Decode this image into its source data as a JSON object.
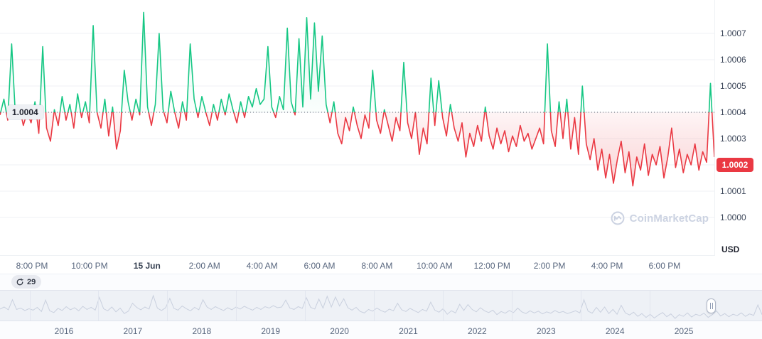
{
  "chart": {
    "open_price_label": "1.0004",
    "current_price_label": "1.0002",
    "unit_label": "USD",
    "watermark_text": "CoinMarketCap"
  },
  "history_badge": {
    "count": "29"
  },
  "navigator": {
    "years": [
      "2016",
      "2017",
      "2018",
      "2019",
      "2020",
      "2021",
      "2022",
      "2023",
      "2024",
      "2025"
    ]
  },
  "colors": {
    "up": "#16c784",
    "down": "#ea3943",
    "grid": "#eff2f5",
    "axis_text": "#58667e",
    "y_axis_text": "#3c4659",
    "price_badge_bg": "#ea3943",
    "price_badge_text": "#ffffff",
    "dotted_line": "#57606f",
    "watermark": "#ccd3e2",
    "navigator_line": "#b9c2d4"
  },
  "chart_data": {
    "type": "line",
    "unit": "USD",
    "threshold": 1.0004,
    "open_price": 1.0004,
    "current_price": 1.0002,
    "ylim": [
      1.0,
      1.0008
    ],
    "y_ticks": [
      "1.0000",
      "1.0001",
      "1.0002",
      "1.0003",
      "1.0004",
      "1.0005",
      "1.0006",
      "1.0007"
    ],
    "x_ticks": [
      "8:00 PM",
      "10:00 PM",
      "15 Jun",
      "2:00 AM",
      "4:00 AM",
      "6:00 AM",
      "8:00 AM",
      "10:00 AM",
      "12:00 PM",
      "2:00 PM",
      "4:00 PM",
      "6:00 PM"
    ],
    "grid": true,
    "legend": false,
    "values": [
      1.00039,
      1.00045,
      1.00037,
      1.00066,
      1.00038,
      1.00042,
      1.00035,
      1.0004,
      1.00036,
      1.00044,
      1.00032,
      1.00065,
      1.00034,
      1.00029,
      1.00041,
      1.00035,
      1.00046,
      1.00037,
      1.00043,
      1.00034,
      1.00047,
      1.00038,
      1.00044,
      1.00036,
      1.00073,
      1.0004,
      1.00034,
      1.00045,
      1.00031,
      1.00042,
      1.00026,
      1.00033,
      1.00056,
      1.00044,
      1.00037,
      1.00045,
      1.00039,
      1.00078,
      1.00042,
      1.00035,
      1.00043,
      1.0007,
      1.00041,
      1.00036,
      1.00048,
      1.0004,
      1.00034,
      1.00044,
      1.00037,
      1.00066,
      1.00045,
      1.00038,
      1.00046,
      1.0004,
      1.00035,
      1.00043,
      1.00037,
      1.00045,
      1.00039,
      1.00047,
      1.00041,
      1.00036,
      1.00044,
      1.00038,
      1.00046,
      1.00042,
      1.00049,
      1.00043,
      1.00045,
      1.00065,
      1.00042,
      1.00038,
      1.00046,
      1.00041,
      1.00072,
      1.00044,
      1.00039,
      1.00068,
      1.00042,
      1.00076,
      1.00045,
      1.00074,
      1.00048,
      1.00069,
      1.00043,
      1.00036,
      1.00044,
      1.00032,
      1.00028,
      1.00038,
      1.00033,
      1.00042,
      1.00035,
      1.0003,
      1.00039,
      1.00034,
      1.00056,
      1.00037,
      1.00032,
      1.00041,
      1.00035,
      1.00029,
      1.00038,
      1.00033,
      1.00059,
      1.00036,
      1.0003,
      1.0004,
      1.00024,
      1.00034,
      1.00028,
      1.00053,
      1.00035,
      1.00052,
      1.00038,
      1.00031,
      1.00043,
      1.00034,
      1.00029,
      1.00036,
      1.00023,
      1.00032,
      1.00027,
      1.00035,
      1.00029,
      1.00042,
      1.00031,
      1.00026,
      1.00034,
      1.00028,
      1.00033,
      1.00025,
      1.00031,
      1.00027,
      1.00035,
      1.00029,
      1.00032,
      1.00026,
      1.0003,
      1.00034,
      1.00028,
      1.00066,
      1.00033,
      1.00027,
      1.00044,
      1.0003,
      1.00045,
      1.00026,
      1.00038,
      1.00024,
      1.0005,
      1.00028,
      1.00022,
      1.0003,
      1.00018,
      1.00026,
      1.00015,
      1.00024,
      1.00013,
      1.00022,
      1.00029,
      1.00017,
      1.00025,
      1.00012,
      1.00023,
      1.00018,
      1.00028,
      1.00016,
      1.00024,
      1.0002,
      1.00027,
      1.00015,
      1.00023,
      1.00034,
      1.00019,
      1.00026,
      1.00017,
      1.00024,
      1.0002,
      1.00028,
      1.00018,
      1.00025,
      1.00021,
      1.00051,
      1.00023
    ]
  }
}
